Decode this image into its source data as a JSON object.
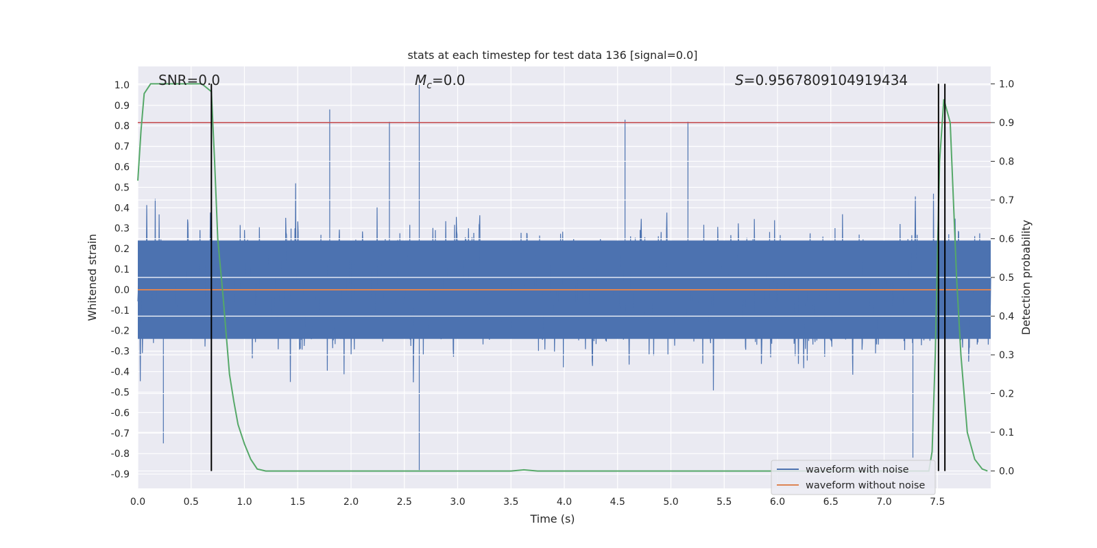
{
  "chart_data": {
    "type": "line",
    "title": "stats at each timestep for test data 136 [signal=0.0]",
    "xlabel": "Time (s)",
    "ylabel_left": "Whitened strain",
    "ylabel_right": "Detection probability",
    "xlim": [
      0.0,
      8.0
    ],
    "ylim_left": [
      -0.97,
      1.09
    ],
    "ylim_right": [
      -0.045,
      1.045
    ],
    "xticks": [
      "0.0",
      "0.5",
      "1.0",
      "1.5",
      "2.0",
      "2.5",
      "3.0",
      "3.5",
      "4.0",
      "4.5",
      "5.0",
      "5.5",
      "6.0",
      "6.5",
      "7.0",
      "7.5"
    ],
    "yticks_left": [
      "1.0",
      "0.9",
      "0.8",
      "0.7",
      "0.6",
      "0.5",
      "0.4",
      "0.3",
      "0.2",
      "0.1",
      "0.0",
      "-0.1",
      "-0.2",
      "-0.3",
      "-0.4",
      "-0.5",
      "-0.6",
      "-0.7",
      "-0.8",
      "-0.9"
    ],
    "yticks_right": [
      "1.0",
      "0.9",
      "0.8",
      "0.7",
      "0.6",
      "0.5",
      "0.4",
      "0.3",
      "0.2",
      "0.1",
      "0.0"
    ],
    "grid": true,
    "legend_position": "lower-right",
    "annotations": {
      "snr": "SNR=0.0",
      "mc_symbol": "M",
      "mc_sub": "c",
      "mc_value": "=0.0",
      "s_symbol": "S",
      "s_value": "=0.9567809104919434"
    },
    "series": [
      {
        "name": "waveform with noise",
        "axis": "left",
        "color": "#4c72b0",
        "description_only": false,
        "notable_points": [
          {
            "x": 2.64,
            "y": 1.0
          },
          {
            "x": 2.64,
            "y": -0.88
          },
          {
            "x": 1.8,
            "y": 0.88
          },
          {
            "x": 4.57,
            "y": 0.83
          },
          {
            "x": 5.16,
            "y": 0.82
          },
          {
            "x": 2.36,
            "y": 0.82
          },
          {
            "x": 0.24,
            "y": -0.75
          },
          {
            "x": 7.27,
            "y": -0.82
          }
        ]
      },
      {
        "name": "waveform without noise",
        "axis": "left",
        "color": "#dd8452",
        "x": [
          0.0,
          8.0
        ],
        "y": [
          0.0,
          0.0
        ]
      },
      {
        "name": "",
        "axis": "right",
        "color": "#55a868",
        "x": [
          0.0,
          0.03,
          0.06,
          0.12,
          0.25,
          0.5,
          0.6,
          0.69,
          0.72,
          0.75,
          0.8,
          0.86,
          0.9,
          0.94,
          1.0,
          1.06,
          1.12,
          1.2,
          2.0,
          3.0,
          3.5,
          3.62,
          3.75,
          4.0,
          5.0,
          6.0,
          7.0,
          7.42,
          7.45,
          7.48,
          7.52,
          7.56,
          7.62,
          7.68,
          7.72,
          7.78,
          7.85,
          7.92,
          7.97
        ],
        "y": [
          0.75,
          0.88,
          0.975,
          1.0,
          1.0,
          1.0,
          1.0,
          0.98,
          0.8,
          0.6,
          0.45,
          0.25,
          0.18,
          0.12,
          0.07,
          0.03,
          0.005,
          0.0,
          0.0,
          0.0,
          0.0,
          0.003,
          0.0,
          0.0,
          0.0,
          0.0,
          0.0,
          0.0,
          0.05,
          0.3,
          0.8,
          0.96,
          0.9,
          0.5,
          0.3,
          0.1,
          0.03,
          0.005,
          0.0
        ]
      },
      {
        "name": "",
        "axis": "right",
        "color": "#c44e52",
        "x": [
          0.0,
          8.0
        ],
        "y": [
          0.9,
          0.9
        ]
      }
    ],
    "vertical_lines": [
      {
        "x": 0.69,
        "ymin": 0.0,
        "ymax": 1.0,
        "axis": "right",
        "color": "#000000"
      },
      {
        "x": 7.51,
        "ymin": 0.0,
        "ymax": 1.0,
        "axis": "right",
        "color": "#000000"
      },
      {
        "x": 7.57,
        "ymin": 0.0,
        "ymax": 1.0,
        "axis": "right",
        "color": "#000000"
      }
    ],
    "colors": {
      "background": "#eaeaf2",
      "grid": "#ffffff",
      "noise": "#4c72b0",
      "clean": "#dd8452",
      "probability": "#55a868",
      "threshold": "#c44e52",
      "detection": "#000000"
    }
  }
}
